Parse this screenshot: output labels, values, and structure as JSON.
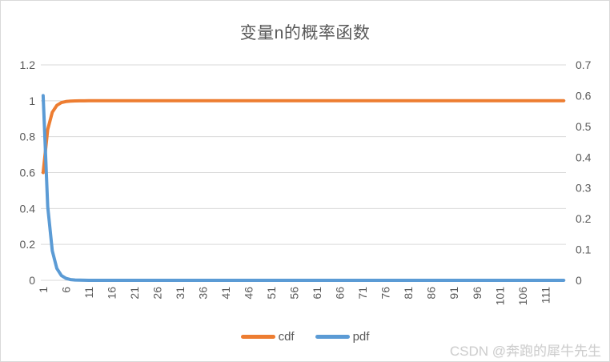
{
  "title": "变量n的概率函数",
  "watermark": "CSDN @奔跑的犀牛先生",
  "legend": [
    {
      "label": "cdf",
      "color": "#ED7D31"
    },
    {
      "label": "pdf",
      "color": "#5B9BD5"
    }
  ],
  "chart_data": {
    "type": "line",
    "title": "变量n的概率函数",
    "gridlines": "horizontal",
    "legend_position": "bottom-center",
    "n_points": 115,
    "x": {
      "start": 1,
      "end": 115,
      "tick_step": 5,
      "tick_labels": [
        "1",
        "6",
        "11",
        "16",
        "21",
        "26",
        "31",
        "36",
        "41",
        "46",
        "51",
        "56",
        "61",
        "66",
        "71",
        "76",
        "81",
        "86",
        "91",
        "96",
        "101",
        "106",
        "111"
      ],
      "tick_label_rotation_deg": -90
    },
    "y_left": {
      "min": 0,
      "max": 1.2,
      "tick_step": 0.2,
      "tick_labels": [
        "1.2",
        "1",
        "0.8",
        "0.6",
        "0.4",
        "0.2",
        "0"
      ]
    },
    "y_right": {
      "min": 0,
      "max": 0.7,
      "tick_step": 0.1,
      "tick_labels": [
        "0.7",
        "0.6",
        "0.5",
        "0.4",
        "0.3",
        "0.2",
        "0.1",
        "0"
      ]
    },
    "series": [
      {
        "name": "cdf",
        "axis": "left",
        "color": "#ED7D31",
        "values_head": [
          0.6,
          0.84,
          0.936,
          0.9744,
          0.98976,
          0.995904,
          0.9983616,
          0.9993446,
          0.9997379,
          0.9998951,
          0.9999581,
          0.9999832
        ],
        "values_tail": 1
      },
      {
        "name": "pdf",
        "axis": "right",
        "color": "#5B9BD5",
        "values_head": [
          0.6,
          0.24,
          0.096,
          0.0384,
          0.01536,
          0.006144,
          0.0024576,
          0.000983,
          0.0003932,
          0.0001573,
          6.29e-05,
          2.52e-05
        ],
        "values_tail": 0
      }
    ]
  }
}
